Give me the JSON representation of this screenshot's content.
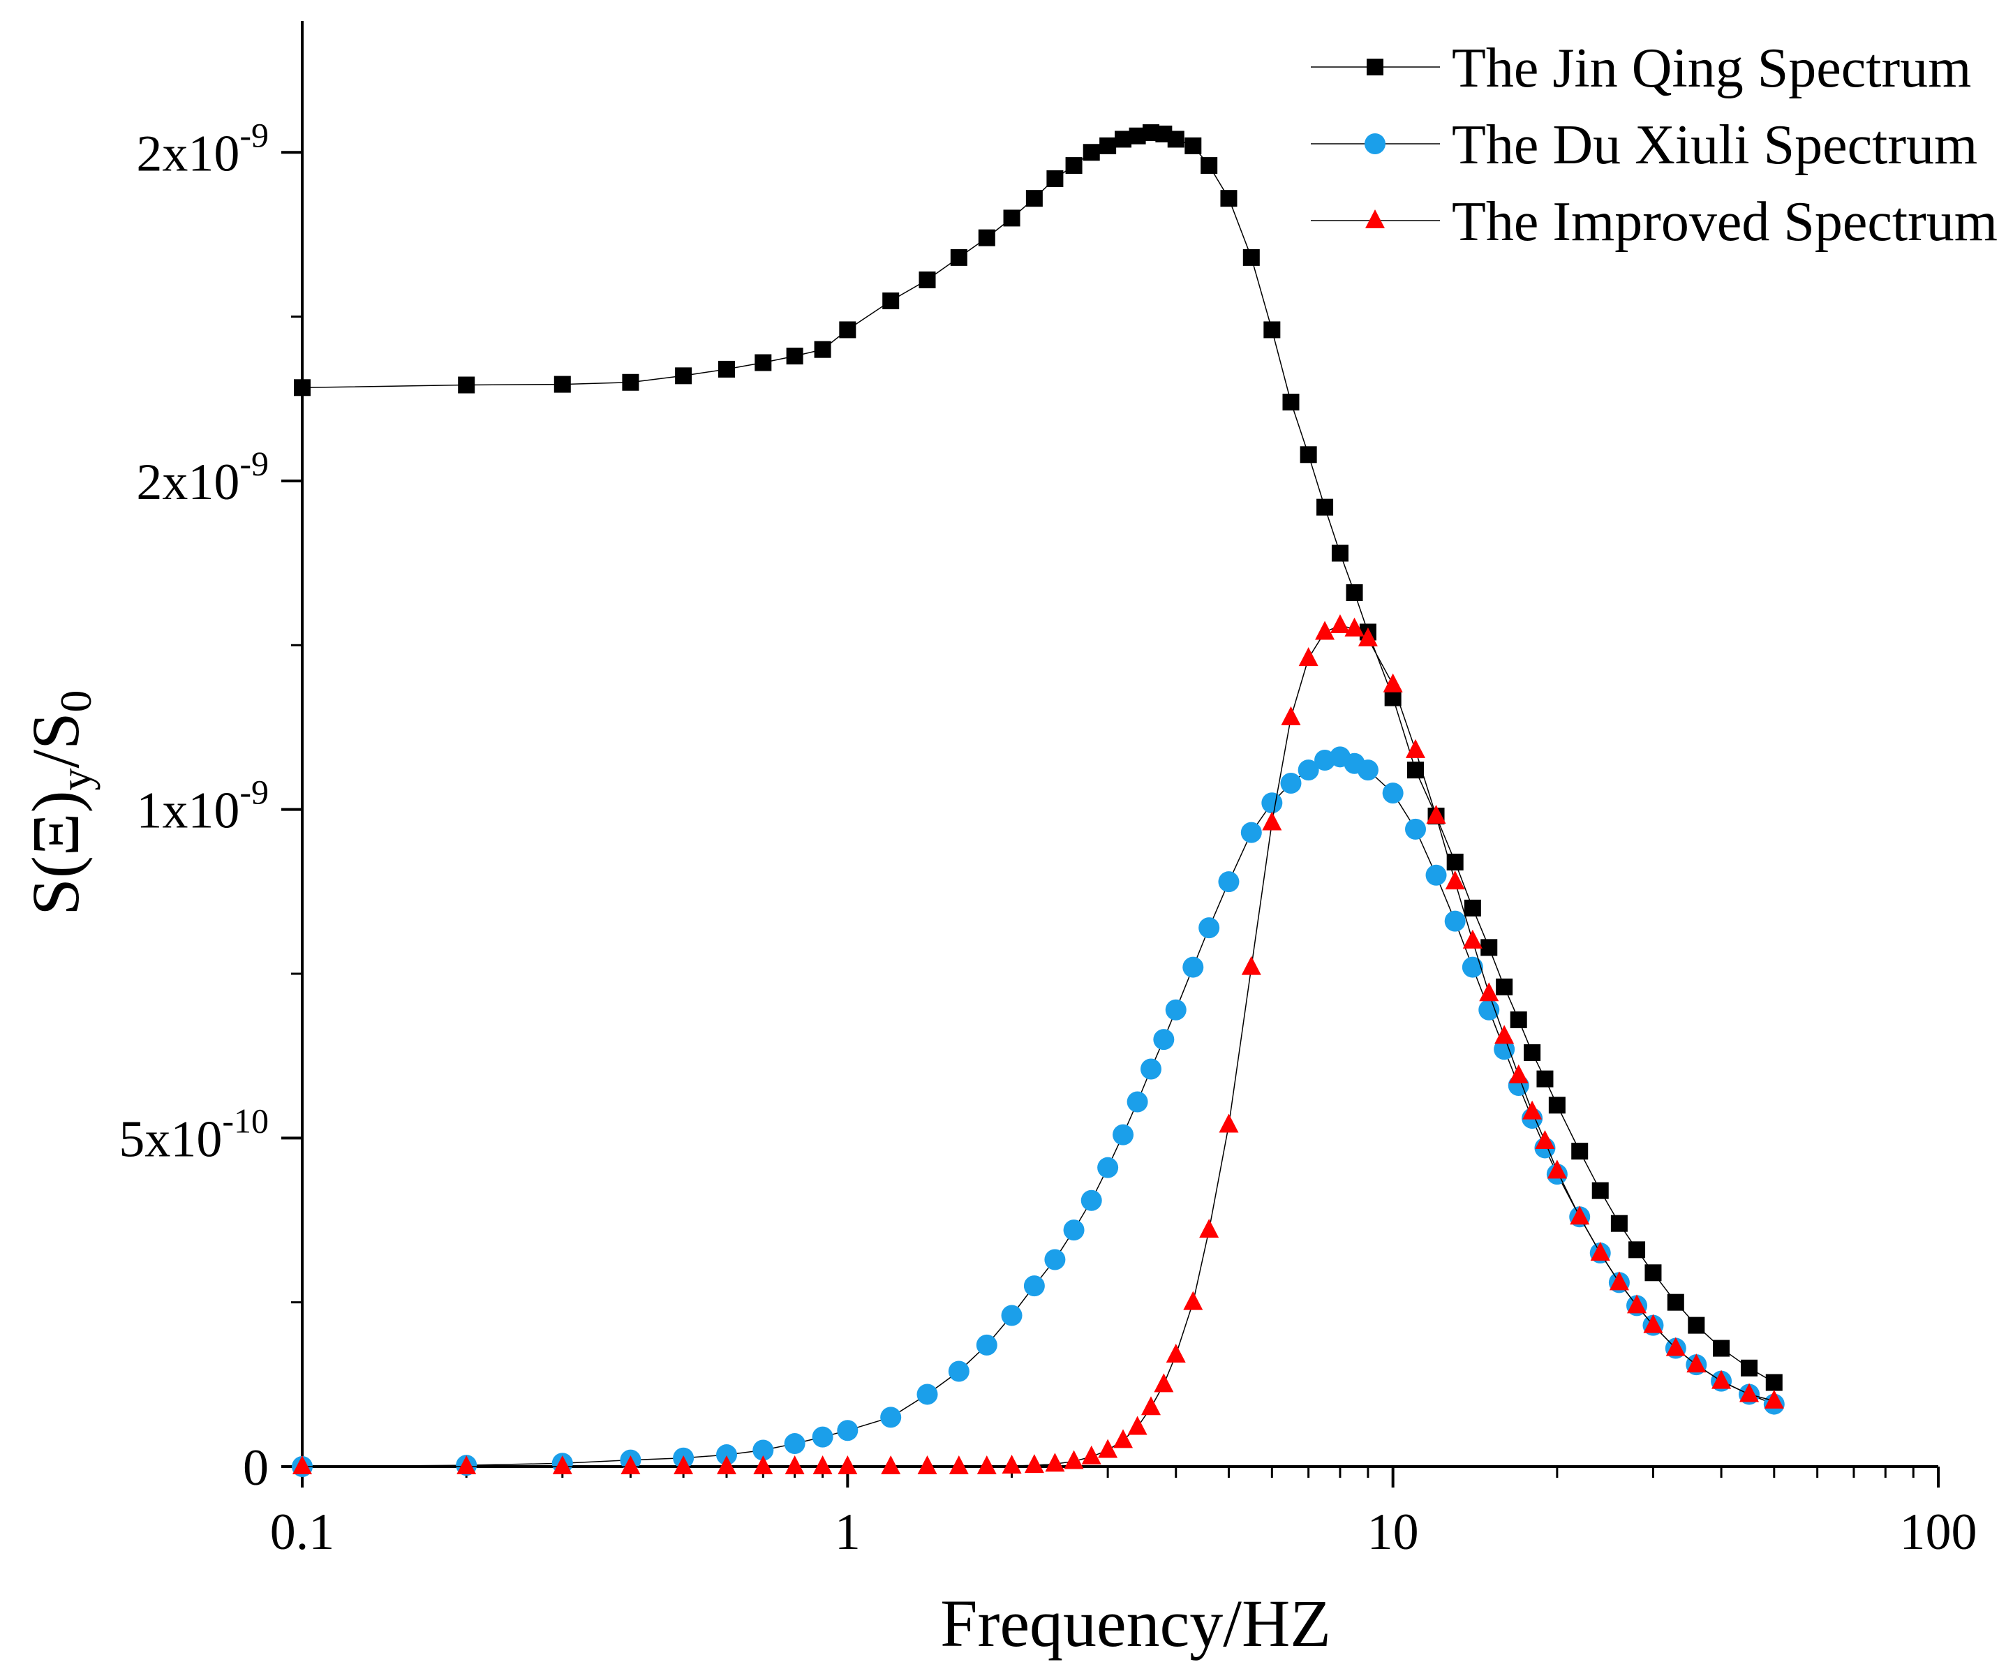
{
  "chart_data": {
    "type": "scatter",
    "xlabel": "Frequency/HZ",
    "ylabel": {
      "base": "S(Ξ)",
      "sub1": "y",
      "mid": "/S",
      "sub2": "0"
    },
    "x_scale": "log",
    "xlim": [
      0.1,
      100
    ],
    "ylim": [
      0,
      2.2e-09
    ],
    "x_ticks": [
      {
        "value": 0.1,
        "label": "0.1"
      },
      {
        "value": 1,
        "label": "1"
      },
      {
        "value": 10,
        "label": "10"
      },
      {
        "value": 100,
        "label": "100"
      }
    ],
    "y_ticks": [
      {
        "value": 0,
        "mantissa": "0",
        "exp": ""
      },
      {
        "value": 5e-10,
        "mantissa": "5x10",
        "exp": "-10"
      },
      {
        "value": 1e-09,
        "mantissa": "1x10",
        "exp": "-9"
      },
      {
        "value": 1.5e-09,
        "mantissa": "2x10",
        "exp": "-9"
      },
      {
        "value": 2e-09,
        "mantissa": "2x10",
        "exp": "-9"
      }
    ],
    "legend_position": "top-right",
    "grid": false,
    "series": [
      {
        "name": "The Jin Qing Spectrum",
        "marker": "square",
        "color": "#000000",
        "x": [
          0.1,
          0.2,
          0.3,
          0.4,
          0.5,
          0.6,
          0.7,
          0.8,
          0.9,
          1,
          1.2,
          1.4,
          1.6,
          1.8,
          2,
          2.2,
          2.4,
          2.6,
          2.8,
          3,
          3.2,
          3.4,
          3.6,
          3.8,
          4,
          4.3,
          4.6,
          5,
          5.5,
          6,
          6.5,
          7,
          7.5,
          8,
          8.5,
          9,
          10,
          11,
          12,
          13,
          14,
          15,
          16,
          17,
          18,
          19,
          20,
          22,
          24,
          26,
          28,
          30,
          33,
          36,
          40,
          45,
          50
        ],
        "y": [
          1.642e-09,
          1.646e-09,
          1.647e-09,
          1.65e-09,
          1.66e-09,
          1.67e-09,
          1.68e-09,
          1.69e-09,
          1.7e-09,
          1.73e-09,
          1.774e-09,
          1.806e-09,
          1.84e-09,
          1.87e-09,
          1.9e-09,
          1.93e-09,
          1.96e-09,
          1.98e-09,
          2e-09,
          2.01e-09,
          2.02e-09,
          2.025e-09,
          2.03e-09,
          2.028e-09,
          2.02e-09,
          2.01e-09,
          1.98e-09,
          1.93e-09,
          1.84e-09,
          1.73e-09,
          1.62e-09,
          1.54e-09,
          1.46e-09,
          1.39e-09,
          1.33e-09,
          1.27e-09,
          1.17e-09,
          1.06e-09,
          9.9e-10,
          9.2e-10,
          8.5e-10,
          7.9e-10,
          7.3e-10,
          6.8e-10,
          6.3e-10,
          5.9e-10,
          5.5e-10,
          4.8e-10,
          4.2e-10,
          3.7e-10,
          3.3e-10,
          2.95e-10,
          2.5e-10,
          2.15e-10,
          1.8e-10,
          1.5e-10,
          1.28e-10
        ]
      },
      {
        "name": "The Du Xiuli Spectrum",
        "marker": "circle",
        "color": "#1b9fea",
        "x": [
          0.1,
          0.2,
          0.3,
          0.4,
          0.5,
          0.6,
          0.7,
          0.8,
          0.9,
          1,
          1.2,
          1.4,
          1.6,
          1.8,
          2,
          2.2,
          2.4,
          2.6,
          2.8,
          3,
          3.2,
          3.4,
          3.6,
          3.8,
          4,
          4.3,
          4.6,
          5,
          5.5,
          6,
          6.5,
          7,
          7.5,
          8,
          8.5,
          9,
          10,
          11,
          12,
          13,
          14,
          15,
          16,
          17,
          18,
          19,
          20,
          22,
          24,
          26,
          28,
          30,
          33,
          36,
          40,
          45,
          50
        ],
        "y": [
          0,
          2e-12,
          5e-12,
          1e-11,
          1.3e-11,
          1.8e-11,
          2.5e-11,
          3.5e-11,
          4.5e-11,
          5.5e-11,
          7.5e-11,
          1.1e-10,
          1.45e-10,
          1.85e-10,
          2.3e-10,
          2.75e-10,
          3.15e-10,
          3.6e-10,
          4.05e-10,
          4.55e-10,
          5.05e-10,
          5.55e-10,
          6.05e-10,
          6.5e-10,
          6.95e-10,
          7.6e-10,
          8.2e-10,
          8.9e-10,
          9.65e-10,
          1.01e-09,
          1.04e-09,
          1.06e-09,
          1.075e-09,
          1.08e-09,
          1.07e-09,
          1.06e-09,
          1.025e-09,
          9.7e-10,
          9e-10,
          8.3e-10,
          7.6e-10,
          6.95e-10,
          6.35e-10,
          5.8e-10,
          5.3e-10,
          4.85e-10,
          4.45e-10,
          3.8e-10,
          3.25e-10,
          2.8e-10,
          2.45e-10,
          2.15e-10,
          1.8e-10,
          1.55e-10,
          1.3e-10,
          1.1e-10,
          9.5e-11
        ]
      },
      {
        "name": "The Improved Spectrum",
        "marker": "triangle",
        "color": "#ff0000",
        "x": [
          0.1,
          0.2,
          0.3,
          0.4,
          0.5,
          0.6,
          0.7,
          0.8,
          0.9,
          1,
          1.2,
          1.4,
          1.6,
          1.8,
          2,
          2.2,
          2.4,
          2.6,
          2.8,
          3,
          3.2,
          3.4,
          3.6,
          3.8,
          4,
          4.3,
          4.6,
          5,
          5.5,
          6,
          6.5,
          7,
          7.5,
          8,
          8.5,
          9,
          10,
          11,
          12,
          13,
          14,
          15,
          16,
          17,
          18,
          19,
          20,
          22,
          24,
          26,
          28,
          30,
          33,
          36,
          40,
          45,
          50
        ],
        "y": [
          0,
          0,
          0,
          0,
          0,
          0,
          0,
          0,
          0,
          0,
          0,
          0,
          0,
          0,
          1e-12,
          2e-12,
          4e-12,
          8e-12,
          1.5e-11,
          2.5e-11,
          4e-11,
          6e-11,
          9e-11,
          1.25e-10,
          1.7e-10,
          2.5e-10,
          3.6e-10,
          5.2e-10,
          7.6e-10,
          9.8e-10,
          1.14e-09,
          1.23e-09,
          1.27e-09,
          1.28e-09,
          1.275e-09,
          1.26e-09,
          1.19e-09,
          1.09e-09,
          9.9e-10,
          8.9e-10,
          8e-10,
          7.2e-10,
          6.55e-10,
          5.95e-10,
          5.4e-10,
          4.95e-10,
          4.5e-10,
          3.8e-10,
          3.25e-10,
          2.8e-10,
          2.45e-10,
          2.15e-10,
          1.8e-10,
          1.55e-10,
          1.3e-10,
          1.1e-10,
          1e-10
        ]
      }
    ]
  }
}
